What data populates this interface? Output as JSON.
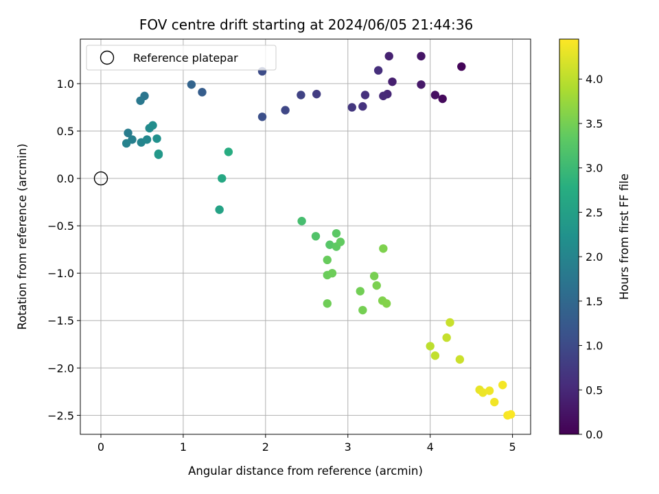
{
  "chart_data": {
    "type": "scatter",
    "title": "FOV centre drift starting at 2024/06/05 21:44:36",
    "xlabel": "Angular distance from reference (arcmin)",
    "ylabel": "Rotation from reference (arcmin)",
    "xlim": [
      -0.25,
      5.22
    ],
    "ylim": [
      -2.7,
      1.47
    ],
    "xticks": [
      0,
      1,
      2,
      3,
      4,
      5
    ],
    "xtick_labels": [
      "0",
      "1",
      "2",
      "3",
      "4",
      "5"
    ],
    "yticks": [
      1.0,
      0.5,
      0.0,
      -0.5,
      -1.0,
      -1.5,
      -2.0,
      -2.5
    ],
    "ytick_labels": [
      "1.0",
      "0.5",
      "0.0",
      "−0.5",
      "−1.0",
      "−1.5",
      "−2.0",
      "−2.5"
    ],
    "grid": true,
    "legend": {
      "position": "top-left",
      "entries": [
        "Reference platepar"
      ]
    },
    "reference_point": {
      "x": 0.0,
      "y": 0.0
    },
    "colorbar": {
      "label": "Hours from first FF file",
      "colormap": "viridis",
      "range": [
        0,
        4.45
      ],
      "ticks": [
        0.0,
        0.5,
        1.0,
        1.5,
        2.0,
        2.5,
        3.0,
        3.5,
        4.0
      ],
      "tick_labels": [
        "0.0",
        "0.5",
        "1.0",
        "1.5",
        "2.0",
        "2.5",
        "3.0",
        "3.5",
        "4.0"
      ]
    },
    "points": [
      {
        "x": 4.38,
        "y": 1.18,
        "hours": 0.05
      },
      {
        "x": 4.15,
        "y": 0.84,
        "hours": 0.12
      },
      {
        "x": 4.06,
        "y": 0.88,
        "hours": 0.18
      },
      {
        "x": 3.89,
        "y": 1.29,
        "hours": 0.25
      },
      {
        "x": 3.89,
        "y": 0.99,
        "hours": 0.3
      },
      {
        "x": 3.54,
        "y": 1.02,
        "hours": 0.38
      },
      {
        "x": 3.5,
        "y": 1.29,
        "hours": 0.42
      },
      {
        "x": 3.48,
        "y": 0.89,
        "hours": 0.48
      },
      {
        "x": 3.43,
        "y": 0.87,
        "hours": 0.52
      },
      {
        "x": 3.37,
        "y": 1.14,
        "hours": 0.58
      },
      {
        "x": 3.21,
        "y": 0.88,
        "hours": 0.62
      },
      {
        "x": 3.18,
        "y": 0.76,
        "hours": 0.65
      },
      {
        "x": 3.05,
        "y": 0.75,
        "hours": 0.7
      },
      {
        "x": 2.62,
        "y": 0.89,
        "hours": 0.8
      },
      {
        "x": 2.43,
        "y": 0.88,
        "hours": 0.88
      },
      {
        "x": 2.24,
        "y": 0.72,
        "hours": 0.95
      },
      {
        "x": 1.96,
        "y": 1.13,
        "hours": 1.02
      },
      {
        "x": 1.96,
        "y": 0.65,
        "hours": 1.08
      },
      {
        "x": 1.23,
        "y": 0.91,
        "hours": 1.3
      },
      {
        "x": 1.1,
        "y": 0.99,
        "hours": 1.42
      },
      {
        "x": 0.53,
        "y": 0.87,
        "hours": 1.72
      },
      {
        "x": 0.48,
        "y": 0.82,
        "hours": 1.78
      },
      {
        "x": 0.33,
        "y": 0.48,
        "hours": 1.85
      },
      {
        "x": 0.38,
        "y": 0.41,
        "hours": 1.9
      },
      {
        "x": 0.31,
        "y": 0.37,
        "hours": 1.95
      },
      {
        "x": 0.49,
        "y": 0.38,
        "hours": 2.0
      },
      {
        "x": 0.56,
        "y": 0.41,
        "hours": 2.05
      },
      {
        "x": 0.59,
        "y": 0.53,
        "hours": 2.1
      },
      {
        "x": 0.63,
        "y": 0.56,
        "hours": 2.15
      },
      {
        "x": 0.68,
        "y": 0.42,
        "hours": 2.2
      },
      {
        "x": 0.7,
        "y": 0.25,
        "hours": 2.28
      },
      {
        "x": 0.7,
        "y": 0.26,
        "hours": 2.35
      },
      {
        "x": 1.44,
        "y": -0.33,
        "hours": 2.55
      },
      {
        "x": 1.47,
        "y": 0.0,
        "hours": 2.65
      },
      {
        "x": 1.55,
        "y": 0.28,
        "hours": 2.75
      },
      {
        "x": 2.44,
        "y": -0.45,
        "hours": 3.1
      },
      {
        "x": 2.61,
        "y": -0.61,
        "hours": 3.2
      },
      {
        "x": 2.78,
        "y": -0.7,
        "hours": 3.25
      },
      {
        "x": 2.86,
        "y": -0.58,
        "hours": 3.3
      },
      {
        "x": 2.86,
        "y": -0.72,
        "hours": 3.33
      },
      {
        "x": 2.91,
        "y": -0.67,
        "hours": 3.36
      },
      {
        "x": 2.75,
        "y": -0.86,
        "hours": 3.4
      },
      {
        "x": 2.75,
        "y": -1.02,
        "hours": 3.42
      },
      {
        "x": 2.81,
        "y": -1.0,
        "hours": 3.44
      },
      {
        "x": 2.75,
        "y": -1.32,
        "hours": 3.46
      },
      {
        "x": 3.15,
        "y": -1.19,
        "hours": 3.48
      },
      {
        "x": 3.18,
        "y": -1.39,
        "hours": 3.5
      },
      {
        "x": 3.32,
        "y": -1.03,
        "hours": 3.52
      },
      {
        "x": 3.35,
        "y": -1.13,
        "hours": 3.54
      },
      {
        "x": 3.43,
        "y": -0.74,
        "hours": 3.56
      },
      {
        "x": 3.42,
        "y": -1.29,
        "hours": 3.58
      },
      {
        "x": 3.47,
        "y": -1.32,
        "hours": 3.6
      },
      {
        "x": 4.0,
        "y": -1.77,
        "hours": 4.0
      },
      {
        "x": 4.06,
        "y": -1.87,
        "hours": 4.03
      },
      {
        "x": 4.2,
        "y": -1.68,
        "hours": 4.06
      },
      {
        "x": 4.24,
        "y": -1.52,
        "hours": 4.08
      },
      {
        "x": 4.36,
        "y": -1.91,
        "hours": 4.1
      },
      {
        "x": 4.6,
        "y": -2.23,
        "hours": 4.3
      },
      {
        "x": 4.64,
        "y": -2.26,
        "hours": 4.33
      },
      {
        "x": 4.72,
        "y": -2.24,
        "hours": 4.35
      },
      {
        "x": 4.78,
        "y": -2.36,
        "hours": 4.37
      },
      {
        "x": 4.88,
        "y": -2.18,
        "hours": 4.39
      },
      {
        "x": 4.94,
        "y": -2.5,
        "hours": 4.41
      },
      {
        "x": 4.98,
        "y": -2.49,
        "hours": 4.43
      }
    ]
  }
}
